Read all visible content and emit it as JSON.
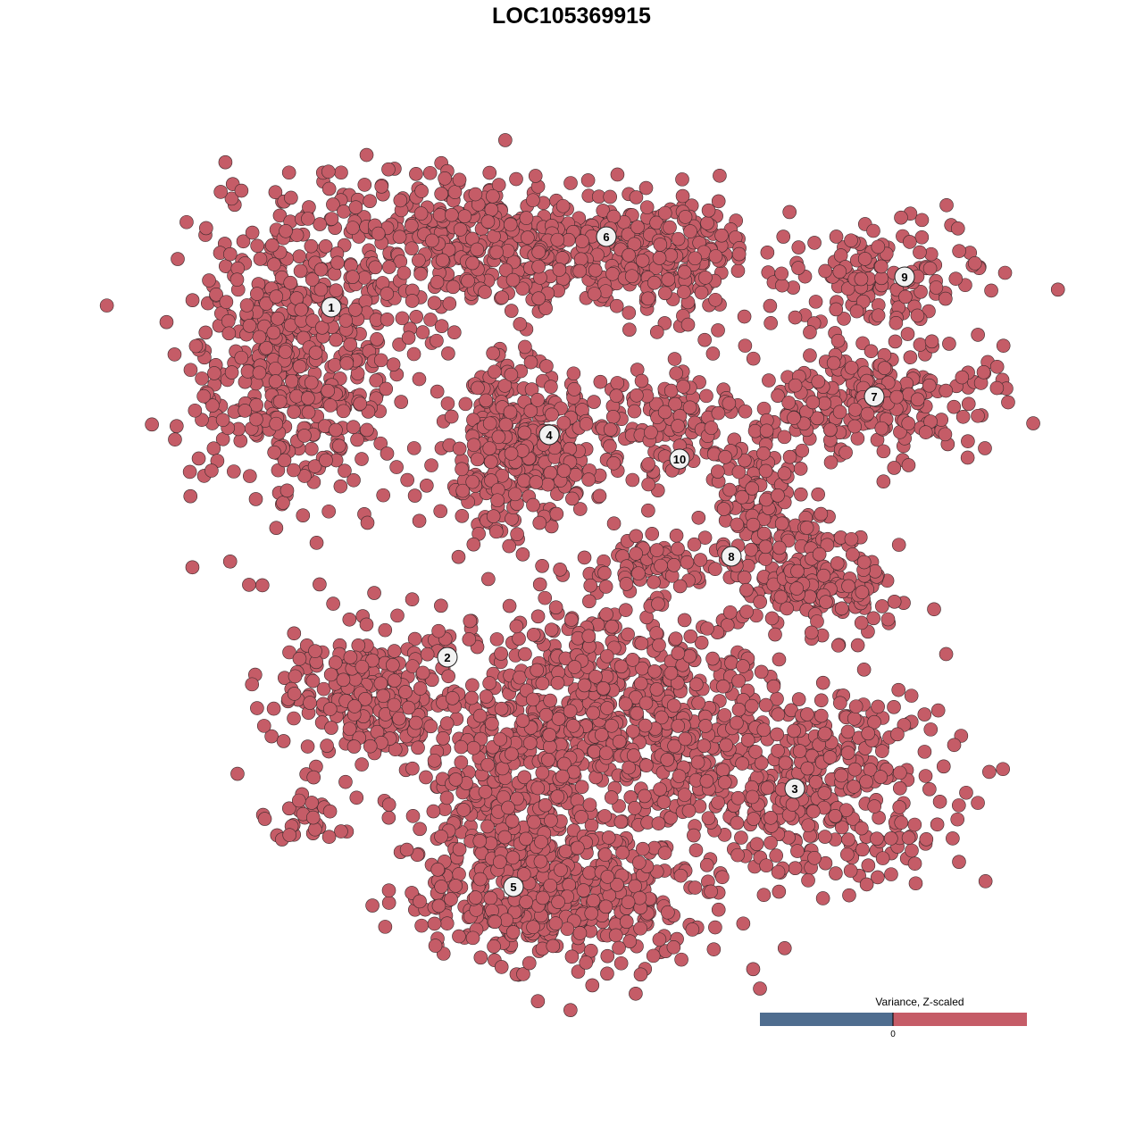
{
  "chart_data": {
    "type": "scatter",
    "title": "LOC105369915",
    "xlabel": "",
    "ylabel": "",
    "axes_shown": false,
    "grid": false,
    "point_fill": "#c55c67",
    "point_stroke": "#3a2a2c",
    "xlim": [
      -45,
      50
    ],
    "ylim": [
      -46,
      46
    ],
    "clusters": [
      {
        "label": "1",
        "label_pos": [
          -26.9,
          29.6
        ],
        "blobs": [
          {
            "center": [
              -31,
              24
            ],
            "spread": [
              5.5,
              7.5
            ],
            "n": 520
          }
        ]
      },
      {
        "label": "6",
        "label_pos": [
          3.9,
          37.5
        ],
        "blobs": [
          {
            "center": [
              -8,
              37
            ],
            "spread": [
              10,
              3.5
            ],
            "n": 520
          },
          {
            "center": [
              12,
              34
            ],
            "spread": [
              4.5,
              3
            ],
            "n": 140
          }
        ]
      },
      {
        "label": "4",
        "label_pos": [
          -2.5,
          15.3
        ],
        "blobs": [
          {
            "center": [
              -6,
              14.5
            ],
            "spread": [
              3.8,
              4
            ],
            "n": 380
          }
        ]
      },
      {
        "label": "10",
        "label_pos": [
          12.1,
          12.6
        ],
        "blobs": [
          {
            "center": [
              11,
              16
            ],
            "spread": [
              4,
              3
            ],
            "n": 130
          }
        ]
      },
      {
        "label": "9",
        "label_pos": [
          37.3,
          33.0
        ],
        "blobs": [
          {
            "center": [
              35,
              33
            ],
            "spread": [
              5,
              2.2
            ],
            "n": 130
          }
        ]
      },
      {
        "label": "7",
        "label_pos": [
          33.9,
          19.6
        ],
        "blobs": [
          {
            "center": [
              33,
              19
            ],
            "spread": [
              7,
              2.8
            ],
            "n": 260
          }
        ]
      },
      {
        "label": "8",
        "label_pos": [
          17.9,
          1.7
        ],
        "blobs": [
          {
            "center": [
              22,
              6
            ],
            "spread": [
              3,
              4
            ],
            "n": 150
          },
          {
            "center": [
              29,
              -1.5
            ],
            "spread": [
              3.5,
              2.5
            ],
            "n": 150
          },
          {
            "center": [
              10,
              1
            ],
            "spread": [
              4,
              1.5
            ],
            "n": 70
          }
        ]
      },
      {
        "label": "2",
        "label_pos": [
          -13.9,
          -9.6
        ],
        "blobs": [
          {
            "center": [
              -22,
              -14
            ],
            "spread": [
              5,
              3.5
            ],
            "n": 260
          },
          {
            "center": [
              -29,
              -27
            ],
            "spread": [
              3,
              1.5
            ],
            "n": 30
          }
        ]
      },
      {
        "label": "3",
        "label_pos": [
          25.0,
          -24.3
        ],
        "blobs": [
          {
            "center": [
              26,
              -24
            ],
            "spread": [
              7,
              5
            ],
            "n": 420
          }
        ]
      },
      {
        "label": "5",
        "label_pos": [
          -6.5,
          -35.3
        ],
        "blobs": [
          {
            "center": [
              -2,
              -36
            ],
            "spread": [
              7,
              4
            ],
            "n": 480
          },
          {
            "center": [
              -8,
              -26
            ],
            "spread": [
              4,
              6
            ],
            "n": 220
          },
          {
            "center": [
              4,
              -16
            ],
            "spread": [
              8,
              6
            ],
            "n": 650
          }
        ]
      }
    ],
    "legend": {
      "title": "Variance, Z-scaled",
      "placement": "bottom-right",
      "tick_label": "0",
      "low_color": "#4f6d8f",
      "high_color": "#c55c67"
    }
  }
}
